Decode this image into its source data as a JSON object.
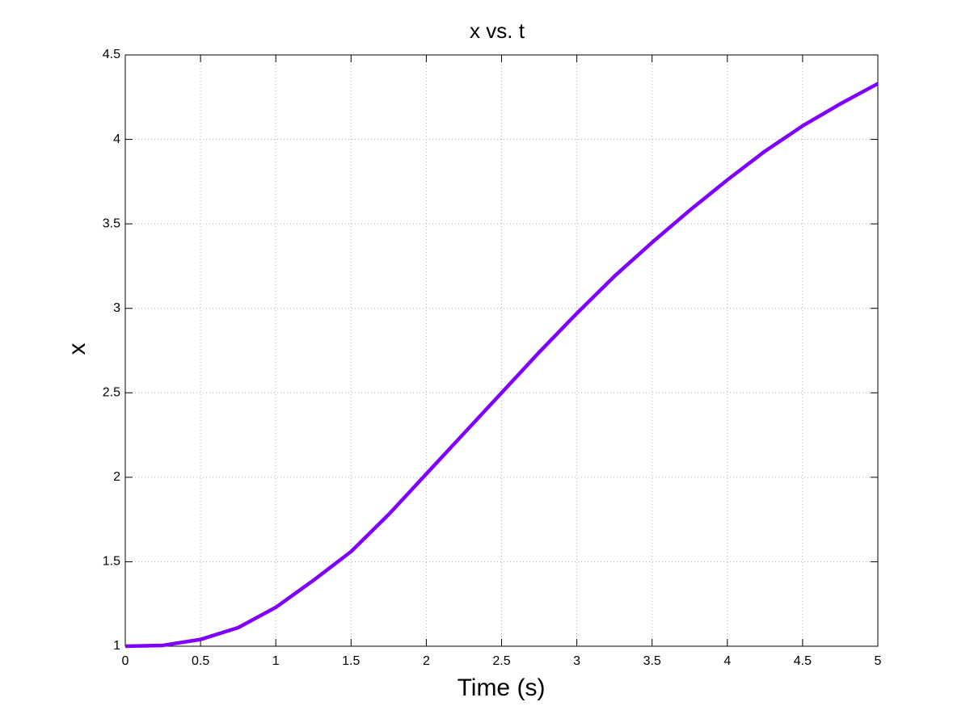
{
  "chart_data": {
    "type": "line",
    "title": "x vs. t",
    "xlabel": "Time (s)",
    "ylabel": "x",
    "series": [
      {
        "color": "#7f00ff",
        "x": [
          0,
          0.25,
          0.5,
          0.75,
          1,
          1.25,
          1.5,
          1.75,
          2,
          2.25,
          2.5,
          2.75,
          3,
          3.25,
          3.5,
          3.75,
          4,
          4.25,
          4.5,
          4.75,
          5
        ],
        "values": [
          1.0,
          1.005,
          1.04,
          1.11,
          1.23,
          1.39,
          1.56,
          1.78,
          2.02,
          2.26,
          2.5,
          2.74,
          2.97,
          3.19,
          3.39,
          3.58,
          3.76,
          3.93,
          4.08,
          4.21,
          4.33
        ]
      }
    ],
    "xlim": [
      0,
      5
    ],
    "xticks": [
      0,
      0.5,
      1,
      1.5,
      2,
      2.5,
      3,
      3.5,
      4,
      4.5,
      5
    ],
    "ylim": [
      1,
      4.5
    ],
    "yticks": [
      1,
      1.5,
      2,
      2.5,
      3,
      3.5,
      4,
      4.5
    ],
    "grid": true
  }
}
